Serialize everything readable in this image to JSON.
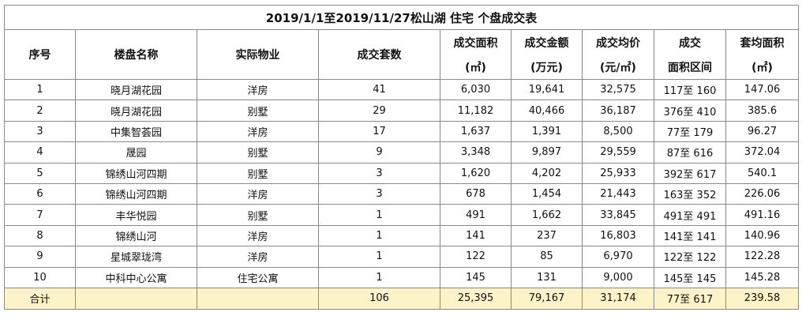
{
  "title": "2019/1/1至2019/11/27松山湖 住宅 个盘成交表",
  "headers": {
    "index": "序号",
    "name": "楼盘名称",
    "type": "实际物业",
    "units": "成交套数",
    "area": [
      "成交面积",
      "(㎡)"
    ],
    "amount": [
      "成交金额",
      "(万元)"
    ],
    "avg_price": [
      "成交均价",
      "(元/㎡)"
    ],
    "range": [
      "成交",
      "面积区间"
    ],
    "avg_area": [
      "套均面积",
      "(㎡)"
    ]
  },
  "rows": [
    {
      "index": "1",
      "name": "晓月湖花园",
      "type": "洋房",
      "units": "41",
      "area": "6,030",
      "amount": "19,641",
      "avg_price": "32,575",
      "range": "117至 160",
      "avg_area": "147.06"
    },
    {
      "index": "2",
      "name": "晓月湖花园",
      "type": "别墅",
      "units": "29",
      "area": "11,182",
      "amount": "40,466",
      "avg_price": "36,187",
      "range": "376至 410",
      "avg_area": "385.6"
    },
    {
      "index": "3",
      "name": "中集智荟园",
      "type": "洋房",
      "units": "17",
      "area": "1,637",
      "amount": "1,391",
      "avg_price": "8,500",
      "range": "77至 179",
      "avg_area": "96.27"
    },
    {
      "index": "4",
      "name": "晟园",
      "type": "别墅",
      "units": "9",
      "area": "3,348",
      "amount": "9,897",
      "avg_price": "29,559",
      "range": "87至 616",
      "avg_area": "372.04"
    },
    {
      "index": "5",
      "name": "锦绣山河四期",
      "type": "别墅",
      "units": "3",
      "area": "1,620",
      "amount": "4,202",
      "avg_price": "25,933",
      "range": "392至 617",
      "avg_area": "540.1"
    },
    {
      "index": "6",
      "name": "锦绣山河四期",
      "type": "洋房",
      "units": "3",
      "area": "678",
      "amount": "1,454",
      "avg_price": "21,443",
      "range": "163至 352",
      "avg_area": "226.06"
    },
    {
      "index": "7",
      "name": "丰华悦园",
      "type": "别墅",
      "units": "1",
      "area": "491",
      "amount": "1,662",
      "avg_price": "33,845",
      "range": "491至 491",
      "avg_area": "491.16"
    },
    {
      "index": "8",
      "name": "锦绣山河",
      "type": "洋房",
      "units": "1",
      "area": "141",
      "amount": "237",
      "avg_price": "16,803",
      "range": "141至 141",
      "avg_area": "140.96"
    },
    {
      "index": "9",
      "name": "星城翠珑湾",
      "type": "洋房",
      "units": "1",
      "area": "122",
      "amount": "85",
      "avg_price": "6,970",
      "range": "122至 122",
      "avg_area": "122.28"
    },
    {
      "index": "10",
      "name": "中科中心公寓",
      "type": "住宅公寓",
      "units": "1",
      "area": "145",
      "amount": "131",
      "avg_price": "9,000",
      "range": "145至 145",
      "avg_area": "145.28"
    }
  ],
  "total": {
    "label": "合计",
    "units": "106",
    "area": "25,395",
    "amount": "79,167",
    "avg_price": "31,174",
    "range": "77至 617",
    "avg_area": "239.58"
  },
  "colors": {
    "total_row_bg": "#fdf3c8",
    "grid": "#8a8a8a"
  }
}
